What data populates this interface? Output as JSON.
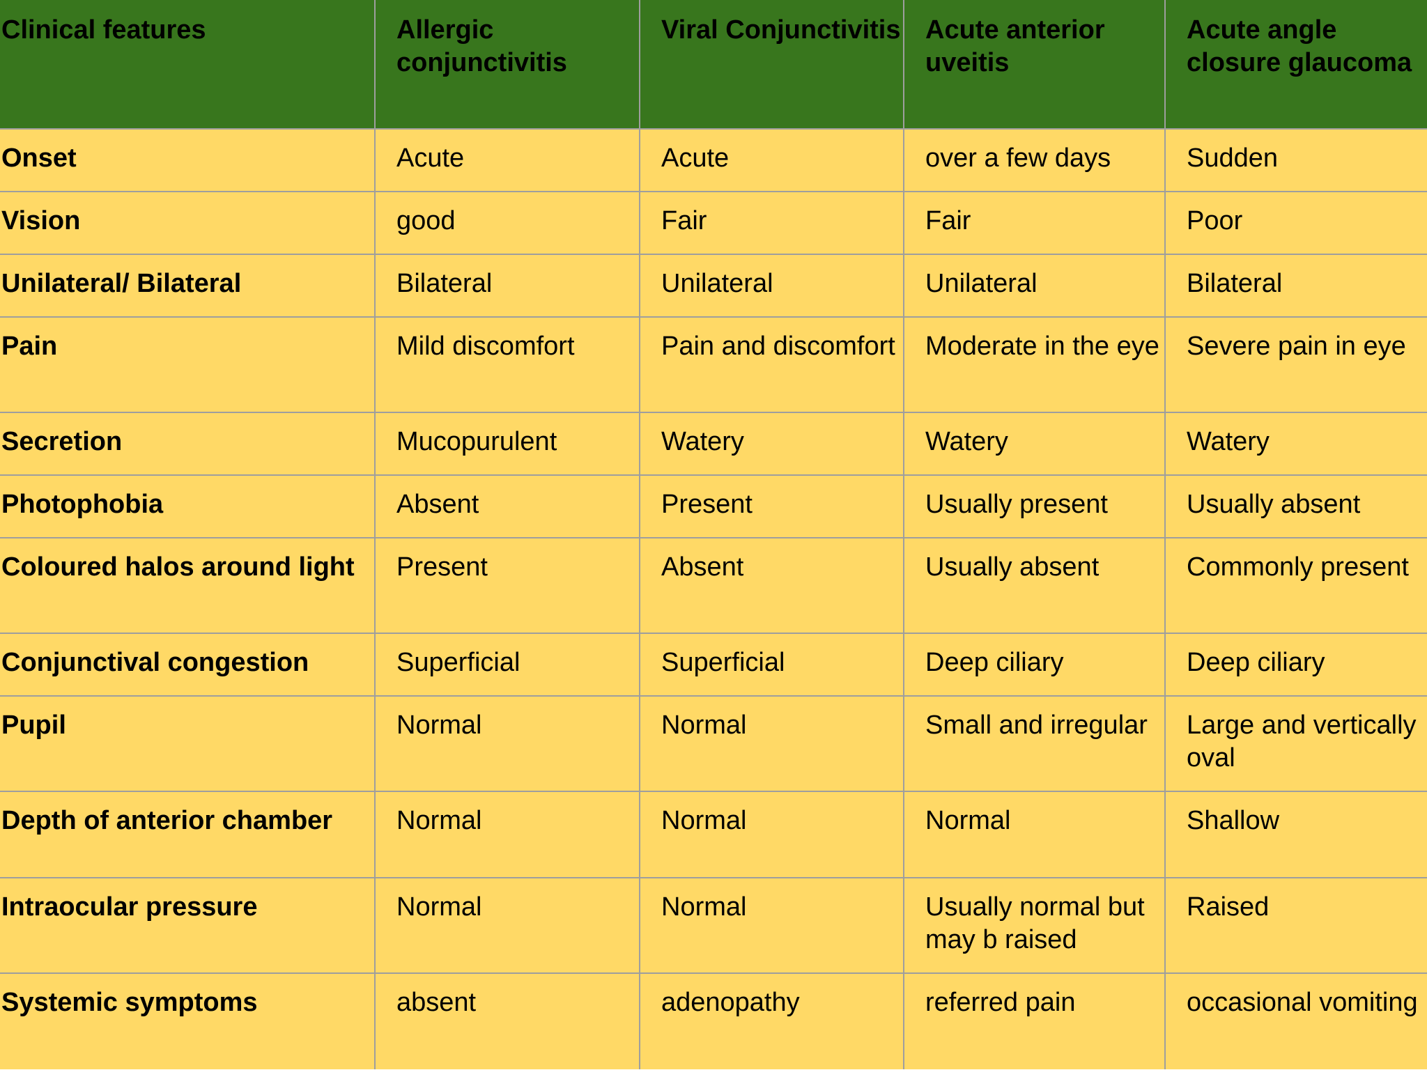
{
  "table": {
    "headers": [
      "Clinical features",
      "Allergic conjunctivitis",
      "Viral Conjunctivitis",
      "Acute anterior uveitis",
      "Acute angle closure glaucoma"
    ],
    "rows": [
      [
        "Onset",
        "Acute",
        "Acute",
        "over a few days",
        "Sudden"
      ],
      [
        "Vision",
        "good",
        "Fair",
        "Fair",
        "Poor"
      ],
      [
        "Unilateral/ Bilateral",
        "Bilateral",
        "Unilateral",
        "Unilateral",
        "Bilateral"
      ],
      [
        "Pain",
        "Mild discomfort",
        "Pain and discomfort",
        "Moderate in the eye",
        "Severe pain in eye"
      ],
      [
        "Secretion",
        "Mucopurulent",
        "Watery",
        "Watery",
        "Watery"
      ],
      [
        "Photophobia",
        "Absent",
        "Present",
        "Usually present",
        "Usually absent"
      ],
      [
        "Coloured halos around light",
        "Present",
        "Absent",
        "Usually absent",
        "Commonly present"
      ],
      [
        "Conjunctival congestion",
        "Superficial",
        "Superficial",
        "Deep ciliary",
        "Deep ciliary"
      ],
      [
        "Pupil",
        "Normal",
        "Normal",
        "Small and irregular",
        "Large and vertically oval"
      ],
      [
        "Depth of anterior chamber",
        "Normal",
        "Normal",
        "Normal",
        "Shallow"
      ],
      [
        "Intraocular pressure",
        "Normal",
        "Normal",
        "Usually normal but may b raised",
        "Raised"
      ],
      [
        "Systemic symptoms",
        "absent",
        "adenopathy",
        "referred pain",
        "occasional vomiting"
      ]
    ]
  },
  "colors": {
    "header_bg": "#38761d",
    "cell_bg": "#ffd966",
    "border": "#9e9e9e"
  }
}
